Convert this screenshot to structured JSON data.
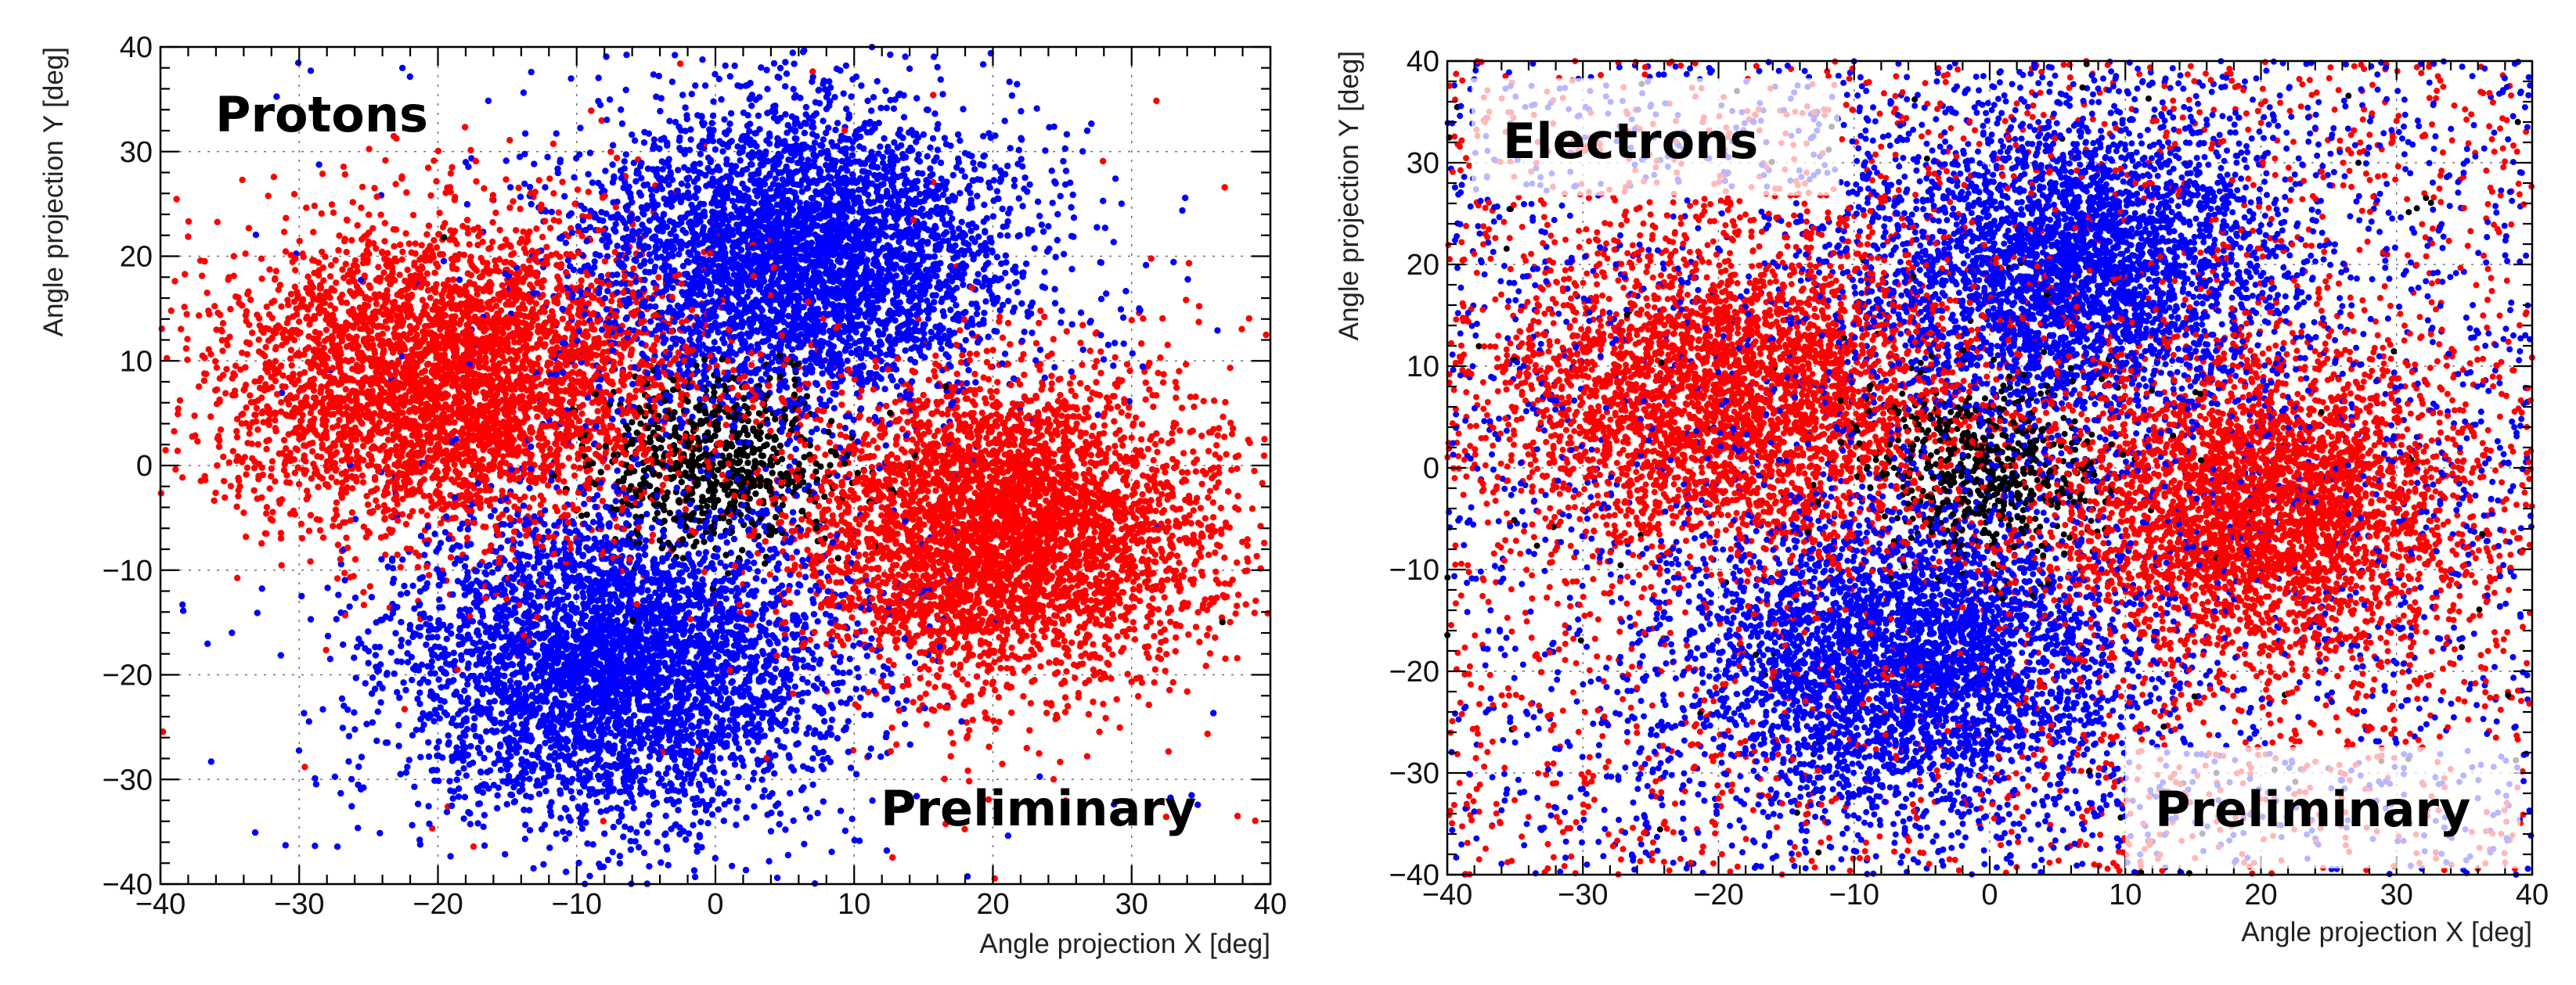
{
  "chart_data": [
    {
      "type": "scatter",
      "panel": "left",
      "title": "Protons",
      "annotation": "Preliminary",
      "xlabel": "Angle projection X [deg]",
      "ylabel": "Angle projection Y [deg]",
      "xlim": [
        -40,
        40
      ],
      "ylim": [
        -40,
        40
      ],
      "xticks": [
        -40,
        -30,
        -20,
        -10,
        0,
        10,
        20,
        30,
        40
      ],
      "yticks": [
        -40,
        -30,
        -20,
        -10,
        0,
        10,
        20,
        30,
        40
      ],
      "grid": true,
      "background_noise_per_series": 40,
      "series": [
        {
          "name": "red cluster (left)",
          "color": "#ff0000",
          "center": [
            -19,
            8
          ],
          "spread": [
            8.5,
            7.5
          ],
          "count": 4300
        },
        {
          "name": "red cluster (right)",
          "color": "#ff0000",
          "center": [
            21,
            -6
          ],
          "spread": [
            7.5,
            7.5
          ],
          "count": 4300
        },
        {
          "name": "blue cluster (top)",
          "color": "#0000ff",
          "center": [
            6,
            20
          ],
          "spread": [
            8,
            7.5
          ],
          "count": 4300
        },
        {
          "name": "blue cluster (bottom)",
          "color": "#0000ff",
          "center": [
            -7,
            -19
          ],
          "spread": [
            8,
            7.5
          ],
          "count": 4300
        },
        {
          "name": "black cluster (center)",
          "color": "#000000",
          "center": [
            0,
            0
          ],
          "spread": [
            4.5,
            4.5
          ],
          "count": 700
        }
      ]
    },
    {
      "type": "scatter",
      "panel": "right",
      "title": "Electrons",
      "annotation": "Preliminary",
      "xlabel": "Angle projection X [deg]",
      "ylabel": "Angle projection Y [deg]",
      "xlim": [
        -40,
        40
      ],
      "ylim": [
        -40,
        40
      ],
      "xticks": [
        -40,
        -30,
        -20,
        -10,
        0,
        10,
        20,
        30,
        40
      ],
      "yticks": [
        -40,
        -30,
        -20,
        -10,
        0,
        10,
        20,
        30,
        40
      ],
      "grid": true,
      "background_noise_per_series": 1400,
      "series": [
        {
          "name": "red cluster (left)",
          "color": "#ff0000",
          "center": [
            -19,
            7
          ],
          "spread": [
            8.5,
            7.5
          ],
          "count": 3400
        },
        {
          "name": "red cluster (right)",
          "color": "#ff0000",
          "center": [
            20,
            -4
          ],
          "spread": [
            7.5,
            7.5
          ],
          "count": 3400
        },
        {
          "name": "blue cluster (top)",
          "color": "#0000ff",
          "center": [
            6,
            20
          ],
          "spread": [
            8,
            7.5
          ],
          "count": 3400
        },
        {
          "name": "blue cluster (bottom)",
          "color": "#0000ff",
          "center": [
            -6,
            -19
          ],
          "spread": [
            8,
            7.5
          ],
          "count": 3400
        },
        {
          "name": "black cluster (center)",
          "color": "#000000",
          "center": [
            0,
            0
          ],
          "spread": [
            4.5,
            4.5
          ],
          "count": 600
        }
      ]
    }
  ]
}
